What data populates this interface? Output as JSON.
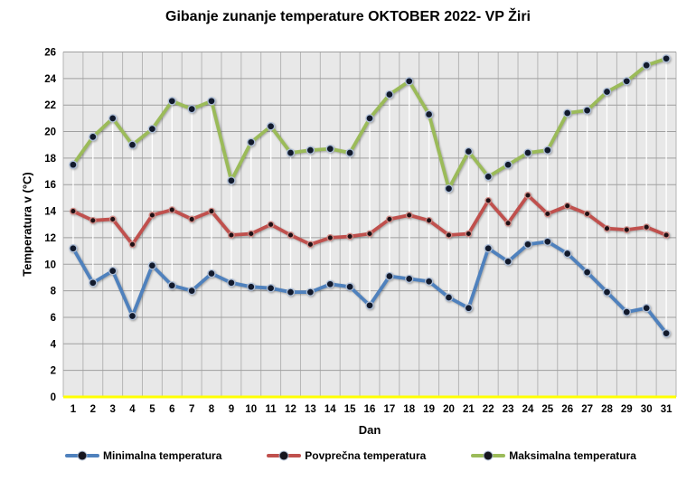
{
  "title": "Gibanje zunanje temperature OKTOBER 2022- VP Žiri",
  "chart_data": {
    "type": "line",
    "title": "Gibanje zunanje temperature OKTOBER 2022- VP Žiri",
    "xlabel": "Dan",
    "ylabel": "Temperatura v (°C)",
    "ylim": [
      0,
      26
    ],
    "ytick_step": 2,
    "grid": true,
    "legend_position": "bottom",
    "plot_bg_color": "#e8e8e8",
    "vertical_gridline_color": "#b5b5b5",
    "horizontal_gridline_color": "#9f9f9f",
    "zero_line_color": "#ffff00",
    "highlow_line_color": "#ffffff",
    "x": [
      1,
      2,
      3,
      4,
      5,
      6,
      7,
      8,
      9,
      10,
      11,
      12,
      13,
      14,
      15,
      16,
      17,
      18,
      19,
      20,
      21,
      22,
      23,
      24,
      25,
      26,
      27,
      28,
      29,
      30,
      31
    ],
    "series": [
      {
        "name": "Minimalna temperatura",
        "color": "#4f81bd",
        "marker_fill": "#121a2c",
        "marker_stroke": "#aebfd8",
        "values": [
          11.2,
          8.6,
          9.5,
          6.1,
          9.9,
          8.4,
          8.0,
          9.3,
          8.6,
          8.3,
          8.2,
          7.9,
          7.9,
          8.5,
          8.3,
          6.9,
          9.1,
          8.9,
          8.7,
          7.5,
          6.7,
          11.2,
          10.2,
          11.5,
          11.7,
          10.8,
          9.4,
          7.9,
          6.4,
          6.7,
          4.8
        ]
      },
      {
        "name": "Povprečna temperatura",
        "color": "#c0504d",
        "marker_fill": "#1f1014",
        "marker_stroke": "#d08a85",
        "values": [
          14.0,
          13.3,
          13.4,
          11.5,
          13.7,
          14.1,
          13.4,
          14.0,
          12.2,
          12.3,
          13.0,
          12.2,
          11.5,
          12.0,
          12.1,
          12.3,
          13.4,
          13.7,
          13.3,
          12.2,
          12.3,
          14.8,
          13.1,
          15.2,
          13.8,
          14.4,
          13.8,
          12.7,
          12.6,
          12.8,
          12.2
        ]
      },
      {
        "name": "Maksimalna temperatura",
        "color": "#9bbb59",
        "marker_fill": "#121a2c",
        "marker_stroke": "#aebfd8",
        "values": [
          17.5,
          19.6,
          21.0,
          19.0,
          20.2,
          22.3,
          21.7,
          22.3,
          16.3,
          19.2,
          20.4,
          18.4,
          18.6,
          18.7,
          18.4,
          21.0,
          22.8,
          23.8,
          21.3,
          15.7,
          18.5,
          16.6,
          17.5,
          18.4,
          18.6,
          21.4,
          21.6,
          23.0,
          23.8,
          25.0,
          25.5
        ]
      }
    ]
  }
}
